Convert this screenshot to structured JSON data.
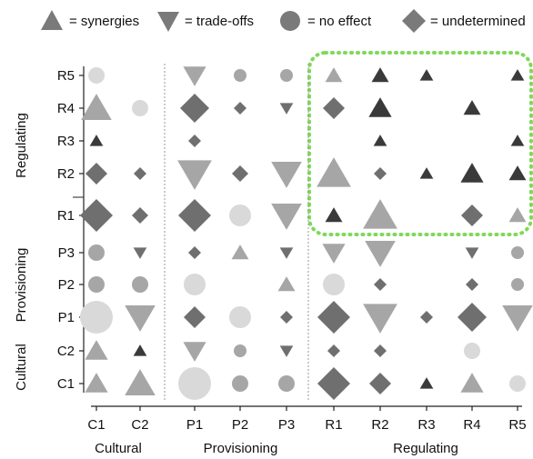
{
  "legend": [
    {
      "shape": "triangle-up",
      "label": "= synergies"
    },
    {
      "shape": "triangle-down",
      "label": "= trade-offs"
    },
    {
      "shape": "circle",
      "label": "= no effect"
    },
    {
      "shape": "diamond",
      "label": "= undetermined"
    }
  ],
  "colors": {
    "shade_1": "#d9d9d9",
    "shade_2": "#a6a6a6",
    "shade_3": "#6f6f6f",
    "shade_4": "#3a3a3a",
    "legend": "#7a7a7a",
    "highlight": "#7ed957",
    "axis": "#222222",
    "separator": "#999999"
  },
  "chart_data": {
    "type": "scatter",
    "x_categories": [
      "C1",
      "C2",
      "P1",
      "P2",
      "P3",
      "R1",
      "R2",
      "R3",
      "R4",
      "R5"
    ],
    "y_categories": [
      "C1",
      "C2",
      "P1",
      "P2",
      "P3",
      "R1",
      "R2",
      "R3",
      "R4",
      "R5"
    ],
    "x_groups": [
      {
        "label": "Cultural",
        "members": [
          "C1",
          "C2"
        ]
      },
      {
        "label": "Provisioning",
        "members": [
          "P1",
          "P2",
          "P3"
        ]
      },
      {
        "label": "Regulating",
        "members": [
          "R1",
          "R2",
          "R3",
          "R4",
          "R5"
        ]
      }
    ],
    "y_groups": [
      {
        "label": "Cultural",
        "members": [
          "C1",
          "C2"
        ]
      },
      {
        "label": "Provisioning",
        "members": [
          "P1",
          "P2",
          "P3"
        ]
      },
      {
        "label": "Regulating",
        "members": [
          "R1",
          "R2",
          "R3",
          "R4",
          "R5"
        ]
      }
    ],
    "highlight": {
      "x_members": [
        "R1",
        "R2",
        "R3",
        "R4",
        "R5"
      ],
      "y_members": [
        "R1",
        "R2",
        "R3",
        "R4",
        "R5"
      ],
      "style": "green dotted rounded box"
    },
    "points": [
      {
        "x": "C1",
        "y": "R5",
        "shape": "circle",
        "size": 2,
        "shade": 1
      },
      {
        "x": "P1",
        "y": "R5",
        "shape": "tri-down",
        "size": 3,
        "shade": 2
      },
      {
        "x": "P2",
        "y": "R5",
        "shape": "circle",
        "size": 1,
        "shade": 2
      },
      {
        "x": "P3",
        "y": "R5",
        "shape": "circle",
        "size": 1,
        "shade": 2
      },
      {
        "x": "R1",
        "y": "R5",
        "shape": "tri-up",
        "size": 2,
        "shade": 2
      },
      {
        "x": "R2",
        "y": "R5",
        "shape": "tri-up",
        "size": 2,
        "shade": 4
      },
      {
        "x": "R3",
        "y": "R5",
        "shape": "tri-up",
        "size": 1,
        "shade": 4
      },
      {
        "x": "R5",
        "y": "R5",
        "shape": "tri-up",
        "size": 1,
        "shade": 4
      },
      {
        "x": "C1",
        "y": "R4",
        "shape": "tri-up",
        "size": 4,
        "shade": 2
      },
      {
        "x": "C2",
        "y": "R4",
        "shape": "circle",
        "size": 2,
        "shade": 1
      },
      {
        "x": "P1",
        "y": "R4",
        "shape": "diamond",
        "size": 4,
        "shade": 3
      },
      {
        "x": "P2",
        "y": "R4",
        "shape": "diamond",
        "size": 1,
        "shade": 3
      },
      {
        "x": "P3",
        "y": "R4",
        "shape": "tri-down",
        "size": 1,
        "shade": 3
      },
      {
        "x": "R1",
        "y": "R4",
        "shape": "diamond",
        "size": 3,
        "shade": 3
      },
      {
        "x": "R2",
        "y": "R4",
        "shape": "tri-up",
        "size": 3,
        "shade": 4
      },
      {
        "x": "R4",
        "y": "R4",
        "shape": "tri-up",
        "size": 2,
        "shade": 4
      },
      {
        "x": "C1",
        "y": "R3",
        "shape": "tri-up",
        "size": 1,
        "shade": 4
      },
      {
        "x": "P1",
        "y": "R3",
        "shape": "diamond",
        "size": 1,
        "shade": 3
      },
      {
        "x": "R2",
        "y": "R3",
        "shape": "tri-up",
        "size": 1,
        "shade": 4
      },
      {
        "x": "R5",
        "y": "R3",
        "shape": "tri-up",
        "size": 1,
        "shade": 4
      },
      {
        "x": "C1",
        "y": "R2",
        "shape": "diamond",
        "size": 3,
        "shade": 3
      },
      {
        "x": "C2",
        "y": "R2",
        "shape": "diamond",
        "size": 1,
        "shade": 3
      },
      {
        "x": "P1",
        "y": "R2",
        "shape": "tri-down",
        "size": 5,
        "shade": 2
      },
      {
        "x": "P2",
        "y": "R2",
        "shape": "diamond",
        "size": 2,
        "shade": 3
      },
      {
        "x": "P3",
        "y": "R2",
        "shape": "tri-down",
        "size": 4,
        "shade": 2
      },
      {
        "x": "R1",
        "y": "R2",
        "shape": "tri-up",
        "size": 5,
        "shade": 2
      },
      {
        "x": "R2",
        "y": "R2",
        "shape": "diamond",
        "size": 1,
        "shade": 3
      },
      {
        "x": "R3",
        "y": "R2",
        "shape": "tri-up",
        "size": 1,
        "shade": 4
      },
      {
        "x": "R4",
        "y": "R2",
        "shape": "tri-up",
        "size": 3,
        "shade": 4
      },
      {
        "x": "R5",
        "y": "R2",
        "shape": "tri-up",
        "size": 2,
        "shade": 4
      },
      {
        "x": "C1",
        "y": "R1",
        "shape": "diamond",
        "size": 5,
        "shade": 3
      },
      {
        "x": "C2",
        "y": "R1",
        "shape": "diamond",
        "size": 2,
        "shade": 3
      },
      {
        "x": "P1",
        "y": "R1",
        "shape": "diamond",
        "size": 5,
        "shade": 3
      },
      {
        "x": "P2",
        "y": "R1",
        "shape": "circle",
        "size": 3,
        "shade": 1
      },
      {
        "x": "P3",
        "y": "R1",
        "shape": "tri-down",
        "size": 4,
        "shade": 2
      },
      {
        "x": "R1",
        "y": "R1",
        "shape": "tri-up",
        "size": 2,
        "shade": 4
      },
      {
        "x": "R2",
        "y": "R1",
        "shape": "tri-up",
        "size": 5,
        "shade": 2
      },
      {
        "x": "R4",
        "y": "R1",
        "shape": "diamond",
        "size": 3,
        "shade": 3
      },
      {
        "x": "R5",
        "y": "R1",
        "shape": "tri-up",
        "size": 2,
        "shade": 2
      },
      {
        "x": "C1",
        "y": "P3",
        "shape": "circle",
        "size": 2,
        "shade": 2
      },
      {
        "x": "C2",
        "y": "P3",
        "shape": "tri-down",
        "size": 1,
        "shade": 3
      },
      {
        "x": "P1",
        "y": "P3",
        "shape": "diamond",
        "size": 1,
        "shade": 3
      },
      {
        "x": "P2",
        "y": "P3",
        "shape": "tri-up",
        "size": 2,
        "shade": 2
      },
      {
        "x": "P3",
        "y": "P3",
        "shape": "tri-down",
        "size": 1,
        "shade": 3
      },
      {
        "x": "R1",
        "y": "P3",
        "shape": "tri-down",
        "size": 3,
        "shade": 2
      },
      {
        "x": "R2",
        "y": "P3",
        "shape": "tri-down",
        "size": 4,
        "shade": 2
      },
      {
        "x": "R4",
        "y": "P3",
        "shape": "tri-down",
        "size": 1,
        "shade": 3
      },
      {
        "x": "R5",
        "y": "P3",
        "shape": "circle",
        "size": 1,
        "shade": 2
      },
      {
        "x": "C1",
        "y": "P2",
        "shape": "circle",
        "size": 2,
        "shade": 2
      },
      {
        "x": "C2",
        "y": "P2",
        "shape": "circle",
        "size": 2,
        "shade": 2
      },
      {
        "x": "P1",
        "y": "P2",
        "shape": "circle",
        "size": 3,
        "shade": 1
      },
      {
        "x": "P3",
        "y": "P2",
        "shape": "tri-up",
        "size": 2,
        "shade": 2
      },
      {
        "x": "R1",
        "y": "P2",
        "shape": "circle",
        "size": 3,
        "shade": 1
      },
      {
        "x": "R2",
        "y": "P2",
        "shape": "diamond",
        "size": 1,
        "shade": 3
      },
      {
        "x": "R4",
        "y": "P2",
        "shape": "diamond",
        "size": 1,
        "shade": 3
      },
      {
        "x": "R5",
        "y": "P2",
        "shape": "circle",
        "size": 1,
        "shade": 2
      },
      {
        "x": "C1",
        "y": "P1",
        "shape": "circle",
        "size": 5,
        "shade": 1
      },
      {
        "x": "C2",
        "y": "P1",
        "shape": "tri-down",
        "size": 4,
        "shade": 2
      },
      {
        "x": "P1",
        "y": "P1",
        "shape": "diamond",
        "size": 3,
        "shade": 3
      },
      {
        "x": "P2",
        "y": "P1",
        "shape": "circle",
        "size": 3,
        "shade": 1
      },
      {
        "x": "P3",
        "y": "P1",
        "shape": "diamond",
        "size": 1,
        "shade": 3
      },
      {
        "x": "R1",
        "y": "P1",
        "shape": "diamond",
        "size": 5,
        "shade": 3
      },
      {
        "x": "R2",
        "y": "P1",
        "shape": "tri-down",
        "size": 5,
        "shade": 2
      },
      {
        "x": "R3",
        "y": "P1",
        "shape": "diamond",
        "size": 1,
        "shade": 3
      },
      {
        "x": "R4",
        "y": "P1",
        "shape": "diamond",
        "size": 4,
        "shade": 3
      },
      {
        "x": "R5",
        "y": "P1",
        "shape": "tri-down",
        "size": 4,
        "shade": 2
      },
      {
        "x": "C1",
        "y": "C2",
        "shape": "tri-up",
        "size": 3,
        "shade": 2
      },
      {
        "x": "C2",
        "y": "C2",
        "shape": "tri-up",
        "size": 1,
        "shade": 4
      },
      {
        "x": "P1",
        "y": "C2",
        "shape": "tri-down",
        "size": 3,
        "shade": 2
      },
      {
        "x": "P2",
        "y": "C2",
        "shape": "circle",
        "size": 1,
        "shade": 2
      },
      {
        "x": "P3",
        "y": "C2",
        "shape": "tri-down",
        "size": 1,
        "shade": 3
      },
      {
        "x": "R1",
        "y": "C2",
        "shape": "diamond",
        "size": 1,
        "shade": 3
      },
      {
        "x": "R2",
        "y": "C2",
        "shape": "diamond",
        "size": 1,
        "shade": 3
      },
      {
        "x": "R4",
        "y": "C2",
        "shape": "circle",
        "size": 2,
        "shade": 1
      },
      {
        "x": "C1",
        "y": "C1",
        "shape": "tri-up",
        "size": 3,
        "shade": 2
      },
      {
        "x": "C2",
        "y": "C1",
        "shape": "tri-up",
        "size": 4,
        "shade": 2
      },
      {
        "x": "P1",
        "y": "C1",
        "shape": "circle",
        "size": 5,
        "shade": 1
      },
      {
        "x": "P2",
        "y": "C1",
        "shape": "circle",
        "size": 2,
        "shade": 2
      },
      {
        "x": "P3",
        "y": "C1",
        "shape": "circle",
        "size": 2,
        "shade": 2
      },
      {
        "x": "R1",
        "y": "C1",
        "shape": "diamond",
        "size": 5,
        "shade": 3
      },
      {
        "x": "R2",
        "y": "C1",
        "shape": "diamond",
        "size": 3,
        "shade": 3
      },
      {
        "x": "R3",
        "y": "C1",
        "shape": "tri-up",
        "size": 1,
        "shade": 4
      },
      {
        "x": "R4",
        "y": "C1",
        "shape": "tri-up",
        "size": 3,
        "shade": 2
      },
      {
        "x": "R5",
        "y": "C1",
        "shape": "circle",
        "size": 2,
        "shade": 1
      }
    ]
  }
}
